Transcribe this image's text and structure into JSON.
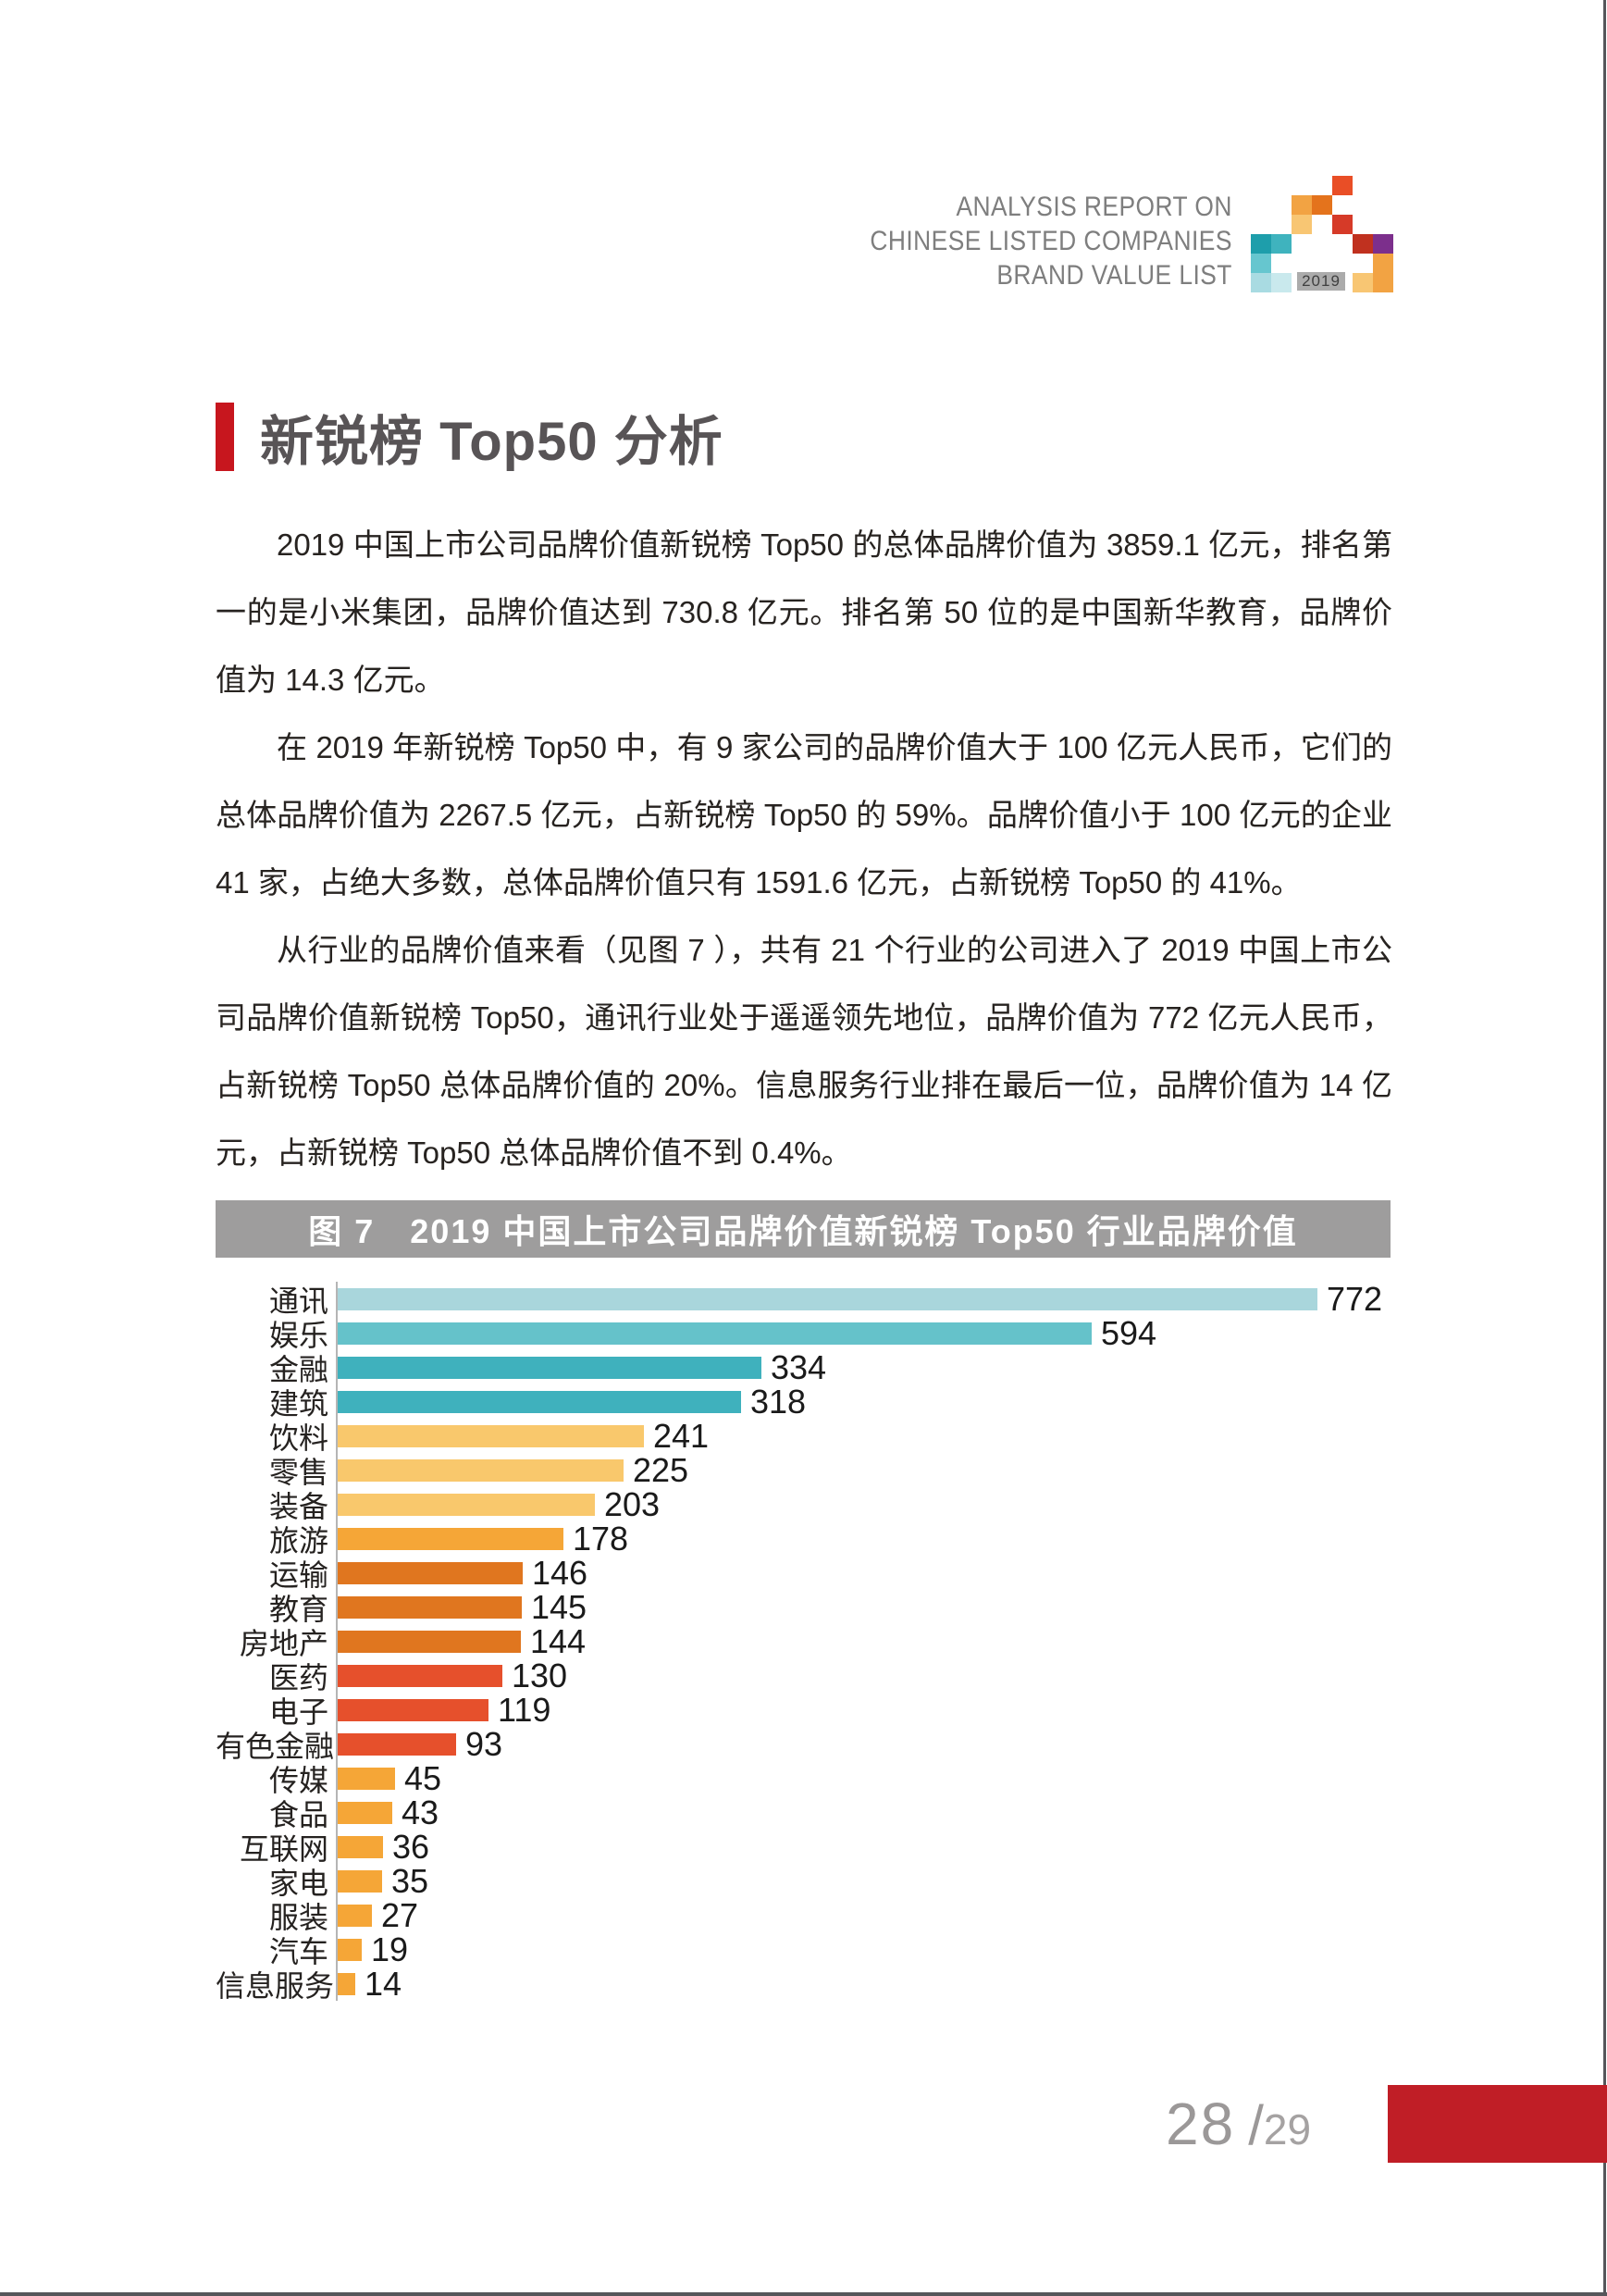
{
  "header": {
    "line1": "ANALYSIS REPORT ON",
    "line2": "CHINESE LISTED COMPANIES",
    "line3": "BRAND VALUE LIST",
    "logo_year": "2019",
    "logo_badge_bg": "#ababab",
    "logo_cells": [
      {
        "r": 0,
        "c": 4,
        "color": "#E94E26"
      },
      {
        "r": 1,
        "c": 2,
        "color": "#F2A343"
      },
      {
        "r": 1,
        "c": 3,
        "color": "#E4731C"
      },
      {
        "r": 2,
        "c": 2,
        "color": "#F8C673"
      },
      {
        "r": 2,
        "c": 4,
        "color": "#D63A28"
      },
      {
        "r": 3,
        "c": 0,
        "color": "#1E9EAB"
      },
      {
        "r": 3,
        "c": 1,
        "color": "#3FB3BE"
      },
      {
        "r": 3,
        "c": 5,
        "color": "#C0311F"
      },
      {
        "r": 3,
        "c": 6,
        "color": "#7C2F8C"
      },
      {
        "r": 4,
        "c": 0,
        "color": "#66C6CF"
      },
      {
        "r": 4,
        "c": 6,
        "color": "#F2A343"
      },
      {
        "r": 5,
        "c": 0,
        "color": "#A9DBE2"
      },
      {
        "r": 5,
        "c": 1,
        "color": "#C9E9ED"
      },
      {
        "r": 5,
        "c": 5,
        "color": "#F8C673"
      },
      {
        "r": 5,
        "c": 6,
        "color": "#F2A343"
      }
    ]
  },
  "title": {
    "text": "新锐榜 Top50 分析",
    "accent_color": "#C7161E"
  },
  "paragraphs": [
    "2019 中国上市公司品牌价值新锐榜 Top50 的总体品牌价值为 3859.1 亿元，排名第一的是小米集团，品牌价值达到 730.8 亿元。排名第 50 位的是中国新华教育，品牌价值为 14.3 亿元。",
    "在 2019 年新锐榜 Top50 中，有 9 家公司的品牌价值大于 100 亿元人民币，它们的总体品牌价值为 2267.5 亿元，占新锐榜 Top50 的 59%。品牌价值小于 100 亿元的企业 41 家，占绝大多数，总体品牌价值只有 1591.6 亿元，占新锐榜 Top50 的 41%。",
    "从行业的品牌价值来看（见图 7 ），共有 21 个行业的公司进入了 2019 中国上市公司品牌价值新锐榜 Top50，通讯行业处于遥遥领先地位，品牌价值为 772 亿元人民币，占新锐榜 Top50 总体品牌价值的 20%。信息服务行业排在最后一位，品牌价值为 14 亿元，占新锐榜 Top50 总体品牌价值不到 0.4%。"
  ],
  "chart_data": {
    "type": "bar",
    "orientation": "horizontal",
    "title": "图 7　2019 中国上市公司品牌价值新锐榜 Top50 行业品牌价值",
    "title_bar_bg": "#9e9d9d",
    "unit": "亿元",
    "x_min": 0,
    "x_max": 800,
    "grid": false,
    "legend": "none",
    "value_labels": true,
    "categories": [
      "通讯",
      "娱乐",
      "金融",
      "建筑",
      "饮料",
      "零售",
      "装备",
      "旅游",
      "运输",
      "教育",
      "房地产",
      "医药",
      "电子",
      "有色金融",
      "传媒",
      "食品",
      "互联网",
      "家电",
      "服装",
      "汽车",
      "信息服务"
    ],
    "values": [
      772,
      594,
      334,
      318,
      241,
      225,
      203,
      178,
      146,
      145,
      144,
      130,
      119,
      93,
      45,
      43,
      36,
      35,
      27,
      19,
      14
    ],
    "bar_colors": [
      "#A9D6DC",
      "#65C2CA",
      "#3FB1BD",
      "#3FB1BD",
      "#F9C86C",
      "#F9C86C",
      "#F9C86C",
      "#F5A637",
      "#E0761F",
      "#E0761F",
      "#E0761F",
      "#E6502C",
      "#E6502C",
      "#E6502C",
      "#F5A637",
      "#F5A637",
      "#F5A637",
      "#F5A637",
      "#F5A637",
      "#F5A637",
      "#F5A637"
    ]
  },
  "footer": {
    "page_current": "28",
    "page_separator": "/",
    "page_total": "29",
    "accent_color": "#C01E26"
  }
}
